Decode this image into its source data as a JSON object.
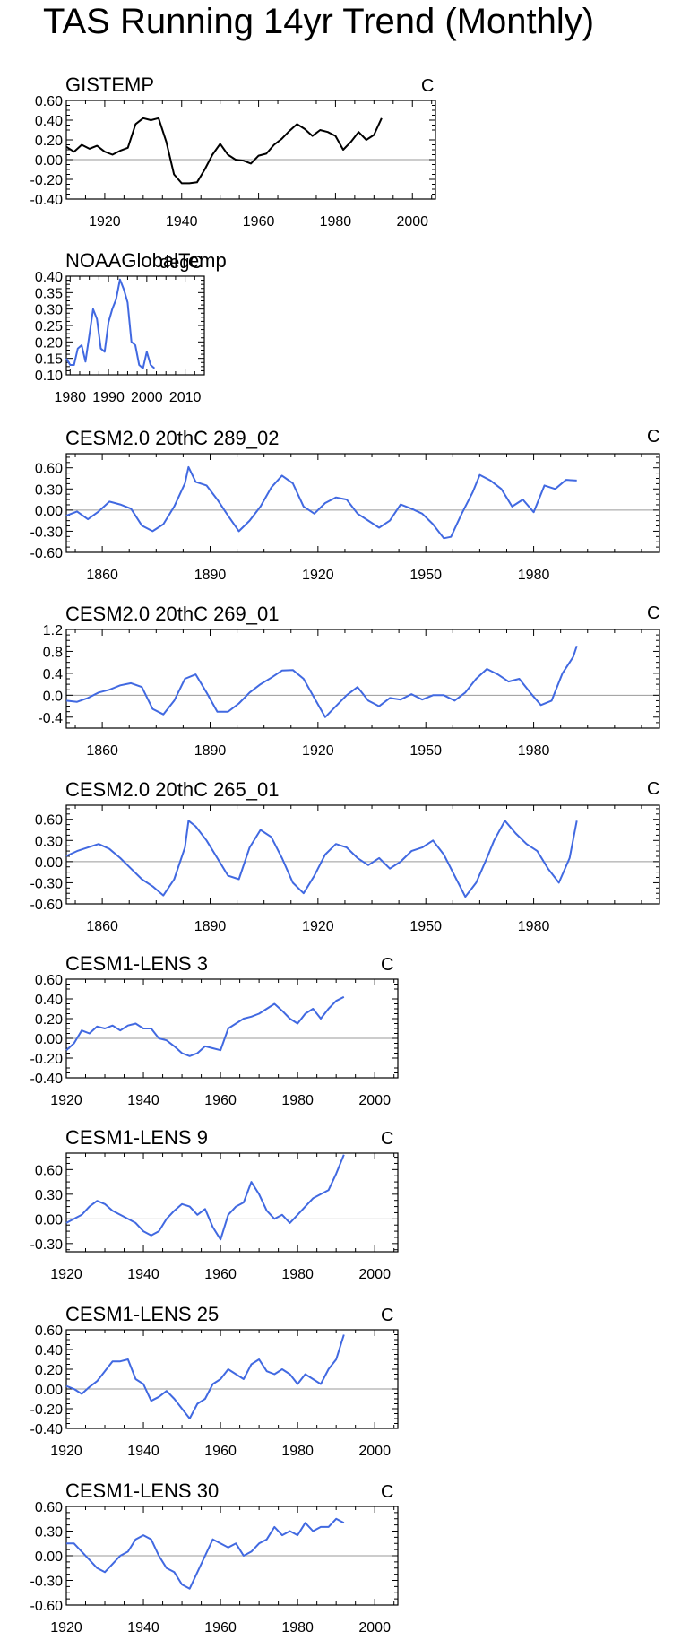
{
  "page": {
    "title": "TAS Running 14yr Trend (Monthly)"
  },
  "colors": {
    "line_primary": "#000000",
    "line_model": "#4169e1",
    "zero_line": "#9a9a9a",
    "axis": "#000000"
  },
  "chart_data": [
    {
      "type": "line",
      "title": "GISTEMP",
      "units": "C",
      "xlim": [
        1910,
        2006
      ],
      "ylim": [
        -0.4,
        0.6
      ],
      "xticks": [
        1920,
        1940,
        1960,
        1980,
        2000
      ],
      "yticks": [
        -0.4,
        -0.2,
        0,
        0.2,
        0.4,
        0.6
      ],
      "ytick_labels": [
        "-0.40",
        "-0.20",
        "0.00",
        "0.20",
        "0.40",
        "0.60"
      ],
      "series": [
        {
          "name": "GISTEMP",
          "color": "#000000",
          "x": [
            1910,
            1912,
            1914,
            1916,
            1918,
            1920,
            1922,
            1924,
            1926,
            1928,
            1930,
            1932,
            1934,
            1936,
            1938,
            1940,
            1942,
            1944,
            1946,
            1948,
            1950,
            1952,
            1954,
            1956,
            1958,
            1960,
            1962,
            1964,
            1966,
            1968,
            1970,
            1972,
            1974,
            1976,
            1978,
            1980,
            1982,
            1984,
            1986,
            1988,
            1990,
            1992
          ],
          "y": [
            0.13,
            0.08,
            0.15,
            0.11,
            0.14,
            0.08,
            0.05,
            0.09,
            0.12,
            0.36,
            0.42,
            0.4,
            0.42,
            0.18,
            -0.15,
            -0.24,
            -0.24,
            -0.23,
            -0.1,
            0.05,
            0.16,
            0.05,
            0.0,
            -0.01,
            -0.04,
            0.04,
            0.06,
            0.15,
            0.21,
            0.29,
            0.36,
            0.31,
            0.24,
            0.3,
            0.28,
            0.24,
            0.1,
            0.18,
            0.28,
            0.2,
            0.25,
            0.42
          ]
        }
      ]
    },
    {
      "type": "line",
      "title": "NOAAGlobalTemp",
      "units": "degC",
      "xlim": [
        1979,
        2015
      ],
      "ylim": [
        0.1,
        0.4
      ],
      "xticks": [
        1980,
        1990,
        2000,
        2010
      ],
      "yticks": [
        0.1,
        0.15,
        0.2,
        0.25,
        0.3,
        0.35,
        0.4
      ],
      "ytick_labels": [
        "0.10",
        "0.15",
        "0.20",
        "0.25",
        "0.30",
        "0.35",
        "0.40"
      ],
      "series": [
        {
          "name": "NOAAGlobalTemp",
          "color": "#4169e1",
          "x": [
            1979,
            1980,
            1981,
            1982,
            1983,
            1984,
            1985,
            1986,
            1987,
            1988,
            1989,
            1990,
            1991,
            1992,
            1993,
            1994,
            1995,
            1996,
            1997,
            1998,
            1999,
            2000,
            2001,
            2002
          ],
          "y": [
            0.15,
            0.13,
            0.13,
            0.18,
            0.19,
            0.14,
            0.22,
            0.3,
            0.27,
            0.18,
            0.17,
            0.26,
            0.3,
            0.33,
            0.39,
            0.36,
            0.32,
            0.2,
            0.19,
            0.13,
            0.12,
            0.17,
            0.13,
            0.12
          ]
        }
      ]
    },
    {
      "type": "line",
      "title": "CESM2.0 20thC 289_02",
      "units": "C",
      "xlim": [
        1850,
        2015
      ],
      "ylim": [
        -0.6,
        0.8
      ],
      "xticks": [
        1860,
        1890,
        1920,
        1950,
        1980
      ],
      "yticks": [
        -0.6,
        -0.3,
        0,
        0.3,
        0.6
      ],
      "ytick_labels": [
        "-0.60",
        "-0.30",
        "0.00",
        "0.30",
        "0.60"
      ],
      "series": [
        {
          "name": "CESM2.0 20thC 289_02",
          "color": "#4169e1",
          "x": [
            1850,
            1853,
            1856,
            1859,
            1862,
            1865,
            1868,
            1871,
            1874,
            1877,
            1880,
            1883,
            1884,
            1886,
            1889,
            1892,
            1895,
            1898,
            1901,
            1904,
            1907,
            1910,
            1913,
            1916,
            1919,
            1922,
            1925,
            1928,
            1931,
            1934,
            1937,
            1940,
            1943,
            1946,
            1949,
            1952,
            1955,
            1957,
            1960,
            1963,
            1965,
            1968,
            1971,
            1974,
            1977,
            1980,
            1983,
            1986,
            1989,
            1992
          ],
          "y": [
            -0.08,
            -0.02,
            -0.13,
            -0.02,
            0.12,
            0.08,
            0.02,
            -0.22,
            -0.3,
            -0.2,
            0.05,
            0.38,
            0.61,
            0.4,
            0.35,
            0.15,
            -0.08,
            -0.3,
            -0.15,
            0.05,
            0.32,
            0.49,
            0.38,
            0.05,
            -0.05,
            0.1,
            0.18,
            0.15,
            -0.05,
            -0.15,
            -0.25,
            -0.15,
            0.08,
            0.02,
            -0.05,
            -0.2,
            -0.4,
            -0.38,
            -0.05,
            0.25,
            0.5,
            0.42,
            0.3,
            0.05,
            0.15,
            -0.03,
            0.35,
            0.3,
            0.43,
            0.42
          ]
        }
      ]
    },
    {
      "type": "line",
      "title": "CESM2.0 20thC 269_01",
      "units": "C",
      "xlim": [
        1850,
        2015
      ],
      "ylim": [
        -0.6,
        1.2
      ],
      "xticks": [
        1860,
        1890,
        1920,
        1950,
        1980
      ],
      "yticks": [
        -0.4,
        0,
        0.4,
        0.8,
        1.2
      ],
      "ytick_labels": [
        "-0.4",
        "0.0",
        "0.4",
        "0.8",
        "1.2"
      ],
      "series": [
        {
          "name": "CESM2.0 20thC 269_01",
          "color": "#4169e1",
          "x": [
            1850,
            1853,
            1856,
            1859,
            1862,
            1865,
            1868,
            1871,
            1874,
            1877,
            1880,
            1883,
            1886,
            1889,
            1892,
            1895,
            1898,
            1901,
            1904,
            1907,
            1910,
            1913,
            1916,
            1919,
            1922,
            1925,
            1928,
            1931,
            1934,
            1937,
            1940,
            1943,
            1946,
            1949,
            1952,
            1955,
            1958,
            1961,
            1964,
            1967,
            1970,
            1973,
            1976,
            1979,
            1982,
            1985,
            1988,
            1991,
            1992
          ],
          "y": [
            -0.1,
            -0.12,
            -0.05,
            0.05,
            0.1,
            0.18,
            0.22,
            0.15,
            -0.25,
            -0.35,
            -0.1,
            0.3,
            0.38,
            0.05,
            -0.3,
            -0.3,
            -0.15,
            0.05,
            0.2,
            0.32,
            0.45,
            0.46,
            0.3,
            -0.05,
            -0.4,
            -0.2,
            0.0,
            0.15,
            -0.1,
            -0.2,
            -0.05,
            -0.08,
            0.02,
            -0.08,
            0.0,
            0.0,
            -0.1,
            0.05,
            0.3,
            0.48,
            0.38,
            0.25,
            0.3,
            0.05,
            -0.18,
            -0.1,
            0.4,
            0.7,
            0.9
          ]
        }
      ]
    },
    {
      "type": "line",
      "title": "CESM2.0 20thC 265_01",
      "units": "C",
      "xlim": [
        1850,
        2015
      ],
      "ylim": [
        -0.6,
        0.8
      ],
      "xticks": [
        1860,
        1890,
        1920,
        1950,
        1980
      ],
      "yticks": [
        -0.6,
        -0.3,
        0,
        0.3,
        0.6
      ],
      "ytick_labels": [
        "-0.60",
        "-0.30",
        "0.00",
        "0.30",
        "0.60"
      ],
      "series": [
        {
          "name": "CESM2.0 20thC 265_01",
          "color": "#4169e1",
          "x": [
            1850,
            1853,
            1856,
            1859,
            1862,
            1865,
            1868,
            1871,
            1874,
            1877,
            1880,
            1883,
            1884,
            1886,
            1889,
            1892,
            1895,
            1898,
            1901,
            1904,
            1907,
            1910,
            1913,
            1916,
            1919,
            1922,
            1925,
            1928,
            1931,
            1934,
            1937,
            1940,
            1943,
            1946,
            1949,
            1952,
            1955,
            1958,
            1961,
            1964,
            1967,
            1969,
            1972,
            1975,
            1978,
            1981,
            1984,
            1987,
            1990,
            1992
          ],
          "y": [
            0.08,
            0.15,
            0.2,
            0.25,
            0.18,
            0.05,
            -0.1,
            -0.25,
            -0.35,
            -0.48,
            -0.25,
            0.2,
            0.58,
            0.5,
            0.3,
            0.05,
            -0.2,
            -0.25,
            0.2,
            0.45,
            0.35,
            0.05,
            -0.3,
            -0.45,
            -0.2,
            0.1,
            0.25,
            0.2,
            0.05,
            -0.05,
            0.05,
            -0.1,
            0.0,
            0.15,
            0.2,
            0.3,
            0.1,
            -0.2,
            -0.5,
            -0.3,
            0.05,
            0.3,
            0.58,
            0.4,
            0.25,
            0.15,
            -0.1,
            -0.3,
            0.05,
            0.58
          ]
        }
      ]
    },
    {
      "type": "line",
      "title": "CESM1-LENS 3",
      "units": "C",
      "xlim": [
        1920,
        2006
      ],
      "ylim": [
        -0.4,
        0.6
      ],
      "xticks": [
        1920,
        1940,
        1960,
        1980,
        2000
      ],
      "yticks": [
        -0.4,
        -0.2,
        0,
        0.2,
        0.4,
        0.6
      ],
      "ytick_labels": [
        "-0.40",
        "-0.20",
        "0.00",
        "0.20",
        "0.40",
        "0.60"
      ],
      "series": [
        {
          "name": "CESM1-LENS 3",
          "color": "#4169e1",
          "x": [
            1920,
            1922,
            1924,
            1926,
            1928,
            1930,
            1932,
            1934,
            1936,
            1938,
            1940,
            1942,
            1944,
            1946,
            1948,
            1950,
            1952,
            1954,
            1956,
            1958,
            1960,
            1962,
            1964,
            1966,
            1968,
            1970,
            1972,
            1974,
            1976,
            1978,
            1980,
            1982,
            1984,
            1986,
            1988,
            1990,
            1992
          ],
          "y": [
            -0.12,
            -0.05,
            0.08,
            0.05,
            0.12,
            0.1,
            0.13,
            0.08,
            0.13,
            0.15,
            0.1,
            0.1,
            0.0,
            -0.02,
            -0.08,
            -0.15,
            -0.18,
            -0.15,
            -0.08,
            -0.1,
            -0.12,
            0.1,
            0.15,
            0.2,
            0.22,
            0.25,
            0.3,
            0.35,
            0.28,
            0.2,
            0.15,
            0.25,
            0.3,
            0.2,
            0.3,
            0.38,
            0.42
          ]
        }
      ]
    },
    {
      "type": "line",
      "title": "CESM1-LENS 9",
      "units": "C",
      "xlim": [
        1920,
        2006
      ],
      "ylim": [
        -0.4,
        0.8
      ],
      "xticks": [
        1920,
        1940,
        1960,
        1980,
        2000
      ],
      "yticks": [
        -0.3,
        0,
        0.3,
        0.6
      ],
      "ytick_labels": [
        "-0.30",
        "0.00",
        "0.30",
        "0.60"
      ],
      "series": [
        {
          "name": "CESM1-LENS 9",
          "color": "#4169e1",
          "x": [
            1920,
            1922,
            1924,
            1926,
            1928,
            1930,
            1932,
            1934,
            1936,
            1938,
            1940,
            1942,
            1944,
            1946,
            1948,
            1950,
            1952,
            1954,
            1956,
            1958,
            1960,
            1962,
            1964,
            1966,
            1968,
            1970,
            1972,
            1974,
            1976,
            1978,
            1980,
            1982,
            1984,
            1986,
            1988,
            1990,
            1992
          ],
          "y": [
            -0.05,
            0.0,
            0.05,
            0.15,
            0.22,
            0.18,
            0.1,
            0.05,
            0.0,
            -0.05,
            -0.15,
            -0.2,
            -0.15,
            0.0,
            0.1,
            0.18,
            0.15,
            0.05,
            0.12,
            -0.1,
            -0.25,
            0.05,
            0.15,
            0.2,
            0.45,
            0.3,
            0.1,
            0.0,
            0.05,
            -0.05,
            0.05,
            0.15,
            0.25,
            0.3,
            0.35,
            0.55,
            0.78
          ]
        }
      ]
    },
    {
      "type": "line",
      "title": "CESM1-LENS 25",
      "units": "C",
      "xlim": [
        1920,
        2006
      ],
      "ylim": [
        -0.4,
        0.6
      ],
      "xticks": [
        1920,
        1940,
        1960,
        1980,
        2000
      ],
      "yticks": [
        -0.4,
        -0.2,
        0,
        0.2,
        0.4,
        0.6
      ],
      "ytick_labels": [
        "-0.40",
        "-0.20",
        "0.00",
        "0.20",
        "0.40",
        "0.60"
      ],
      "series": [
        {
          "name": "CESM1-LENS 25",
          "color": "#4169e1",
          "x": [
            1920,
            1922,
            1924,
            1926,
            1928,
            1930,
            1932,
            1934,
            1936,
            1938,
            1940,
            1942,
            1944,
            1946,
            1948,
            1950,
            1952,
            1954,
            1956,
            1958,
            1960,
            1962,
            1964,
            1966,
            1968,
            1970,
            1972,
            1974,
            1976,
            1978,
            1980,
            1982,
            1984,
            1986,
            1988,
            1990,
            1992
          ],
          "y": [
            0.03,
            0.0,
            -0.05,
            0.02,
            0.08,
            0.18,
            0.28,
            0.28,
            0.3,
            0.1,
            0.05,
            -0.12,
            -0.08,
            -0.02,
            -0.1,
            -0.2,
            -0.3,
            -0.15,
            -0.1,
            0.05,
            0.1,
            0.2,
            0.15,
            0.1,
            0.25,
            0.3,
            0.18,
            0.15,
            0.2,
            0.15,
            0.05,
            0.15,
            0.1,
            0.05,
            0.2,
            0.3,
            0.55
          ]
        }
      ]
    },
    {
      "type": "line",
      "title": "CESM1-LENS 30",
      "units": "C",
      "xlim": [
        1920,
        2006
      ],
      "ylim": [
        -0.6,
        0.6
      ],
      "xticks": [
        1920,
        1940,
        1960,
        1980,
        2000
      ],
      "yticks": [
        -0.6,
        -0.3,
        0,
        0.3,
        0.6
      ],
      "ytick_labels": [
        "-0.60",
        "-0.30",
        "0.00",
        "0.30",
        "0.60"
      ],
      "series": [
        {
          "name": "CESM1-LENS 30",
          "color": "#4169e1",
          "x": [
            1920,
            1922,
            1924,
            1926,
            1928,
            1930,
            1932,
            1934,
            1936,
            1938,
            1940,
            1942,
            1944,
            1946,
            1948,
            1950,
            1952,
            1954,
            1956,
            1958,
            1960,
            1962,
            1964,
            1966,
            1968,
            1970,
            1972,
            1974,
            1976,
            1978,
            1980,
            1982,
            1984,
            1986,
            1988,
            1990,
            1992
          ],
          "y": [
            0.15,
            0.15,
            0.05,
            -0.05,
            -0.15,
            -0.2,
            -0.1,
            0.0,
            0.05,
            0.2,
            0.25,
            0.2,
            0.0,
            -0.15,
            -0.2,
            -0.35,
            -0.4,
            -0.2,
            0.0,
            0.2,
            0.15,
            0.1,
            0.15,
            0.0,
            0.05,
            0.15,
            0.2,
            0.35,
            0.25,
            0.3,
            0.25,
            0.4,
            0.3,
            0.35,
            0.35,
            0.45,
            0.4
          ]
        }
      ]
    }
  ]
}
